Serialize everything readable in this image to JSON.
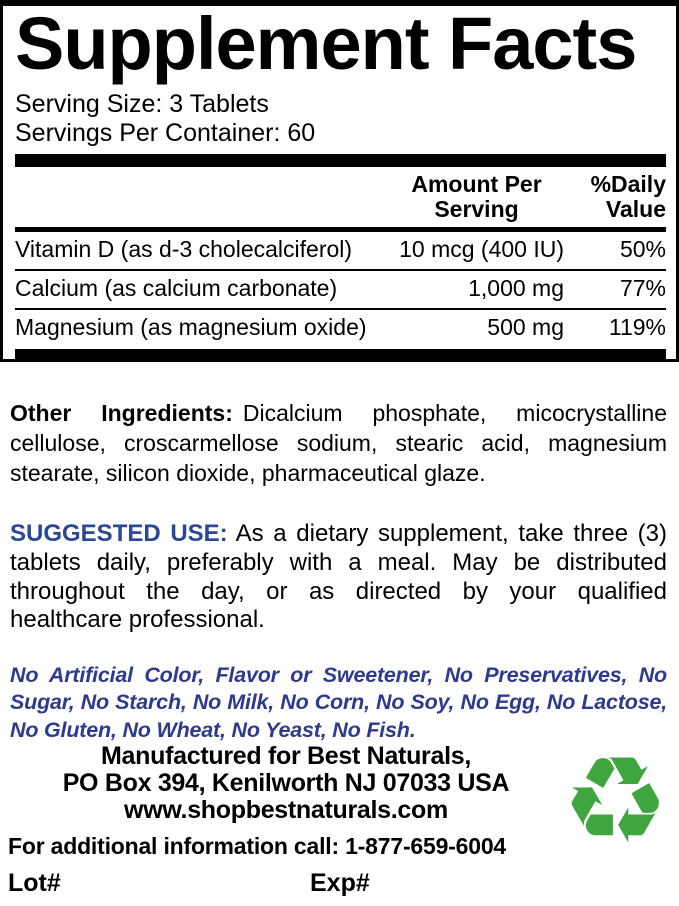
{
  "colors": {
    "blue_heading": "#2C4795",
    "blue_italic": "#2D3A8D",
    "recycle_green": "#3FA63F"
  },
  "panel": {
    "title": "Supplement Facts",
    "serving_size": "Serving Size: 3 Tablets",
    "servings_per_container": "Servings Per Container: 60",
    "header": {
      "amount_line1": "Amount Per",
      "amount_line2": "Serving",
      "dv_line1": "%Daily",
      "dv_line2": "Value"
    },
    "rows": [
      {
        "name": "Vitamin D (as d-3 cholecalciferol)",
        "amount": "10 mcg (400 IU)",
        "dv": "50%"
      },
      {
        "name": "Calcium (as calcium carbonate)",
        "amount": "1,000 mg",
        "dv": "77%"
      },
      {
        "name": "Magnesium (as magnesium oxide)",
        "amount": "500 mg",
        "dv": "119%"
      }
    ]
  },
  "other_ingredients": {
    "label": "Other Ingredients:",
    "text": "Dicalcium phosphate, micocrystalline cellulose, croscarmellose sodium, stearic acid, magnesium stearate, silicon dioxide, pharmaceutical glaze."
  },
  "suggested_use": {
    "label": "SUGGESTED USE:",
    "text": "As a dietary supplement, take three (3) tablets daily, preferably with a meal. May be distributed throughout the day, or as directed by your qualified healthcare professional."
  },
  "claims": "No Artificial Color, Flavor or Sweetener, No Preservatives, No Sugar, No Starch, No Milk, No Corn, No Soy, No Egg, No Lactose, No Gluten, No Wheat, No Yeast, No Fish.",
  "footer": {
    "manufactured_line1": "Manufactured for Best Naturals,",
    "manufactured_line2": "PO Box 394, Kenilworth NJ 07033 USA",
    "website": "www.shopbestnaturals.com",
    "phone_line": "For additional information call: 1-877-659-6004",
    "lot_label": "Lot#",
    "exp_label": "Exp#",
    "recycle_glyph": "♻"
  }
}
